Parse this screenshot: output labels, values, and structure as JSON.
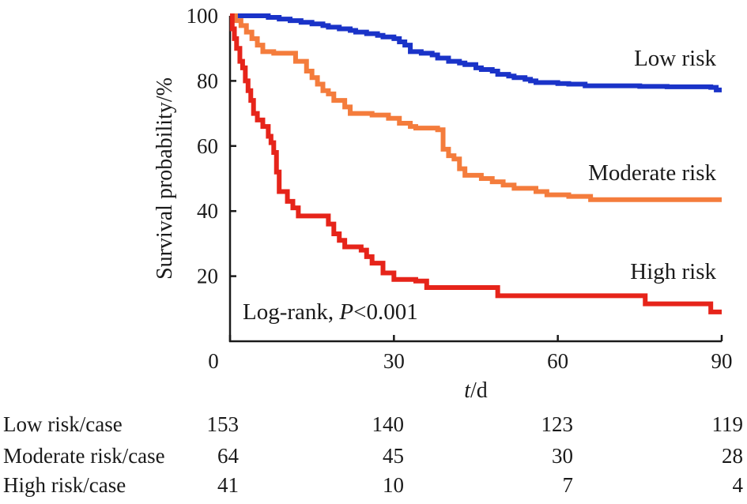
{
  "chart_data": {
    "type": "line",
    "subtype": "kaplan-meier step",
    "ylabel": "Survival probability/%",
    "xlabel_italic": "t",
    "xlabel_unit": "/d",
    "xlim": [
      0,
      90
    ],
    "ylim": [
      0,
      100
    ],
    "x_ticks": [
      0,
      30,
      60,
      90
    ],
    "y_ticks": [
      20,
      40,
      60,
      80,
      100
    ],
    "grid": false,
    "legend": "inline labels at right end of each curve",
    "annotation": {
      "prefix": "Log-rank, ",
      "italic": "P",
      "suffix": "<0.001"
    },
    "series": [
      {
        "name": "Low risk",
        "color": "#1a33c8",
        "points": [
          [
            0,
            100
          ],
          [
            6,
            100
          ],
          [
            7,
            99.5
          ],
          [
            9,
            99
          ],
          [
            11,
            98.5
          ],
          [
            13,
            98
          ],
          [
            15,
            97.5
          ],
          [
            17,
            97
          ],
          [
            18,
            96.5
          ],
          [
            20,
            96
          ],
          [
            22,
            95.5
          ],
          [
            23,
            95
          ],
          [
            25,
            94.5
          ],
          [
            27,
            94
          ],
          [
            28,
            93.5
          ],
          [
            30,
            93
          ],
          [
            31,
            92
          ],
          [
            32,
            91
          ],
          [
            33,
            89
          ],
          [
            35,
            88.5
          ],
          [
            37,
            88
          ],
          [
            38,
            87
          ],
          [
            40,
            86
          ],
          [
            42,
            85.5
          ],
          [
            43,
            85
          ],
          [
            45,
            84
          ],
          [
            46,
            83.5
          ],
          [
            48,
            83
          ],
          [
            49,
            82
          ],
          [
            51,
            81.5
          ],
          [
            52,
            81
          ],
          [
            54,
            80.5
          ],
          [
            55,
            80
          ],
          [
            56,
            79.5
          ],
          [
            58,
            79.5
          ],
          [
            60,
            79.2
          ],
          [
            62,
            79
          ],
          [
            65,
            78.5
          ],
          [
            70,
            78.5
          ],
          [
            75,
            78.3
          ],
          [
            80,
            78.2
          ],
          [
            88,
            78
          ],
          [
            89,
            77.2
          ],
          [
            90,
            77.2
          ]
        ]
      },
      {
        "name": "Moderate risk",
        "color": "#f47c3c",
        "points": [
          [
            0,
            100
          ],
          [
            1,
            98.5
          ],
          [
            2,
            97
          ],
          [
            3,
            95
          ],
          [
            4,
            93
          ],
          [
            5,
            91
          ],
          [
            6,
            89
          ],
          [
            8,
            88.5
          ],
          [
            11,
            88.5
          ],
          [
            12,
            86
          ],
          [
            14,
            83
          ],
          [
            15,
            81
          ],
          [
            16,
            79
          ],
          [
            17,
            77
          ],
          [
            18,
            76
          ],
          [
            19,
            74
          ],
          [
            21,
            72
          ],
          [
            22,
            70
          ],
          [
            26,
            69.5
          ],
          [
            29,
            68.5
          ],
          [
            31,
            67
          ],
          [
            33,
            66
          ],
          [
            34,
            65.5
          ],
          [
            38,
            65
          ],
          [
            39,
            59
          ],
          [
            40,
            57
          ],
          [
            41,
            56
          ],
          [
            42,
            53
          ],
          [
            43,
            51
          ],
          [
            46,
            50
          ],
          [
            48,
            49
          ],
          [
            50,
            48
          ],
          [
            52,
            47
          ],
          [
            56,
            46
          ],
          [
            58,
            45
          ],
          [
            62,
            44.5
          ],
          [
            66,
            43.5
          ],
          [
            70,
            43.5
          ],
          [
            80,
            43.5
          ],
          [
            90,
            43.5
          ]
        ]
      },
      {
        "name": "High risk",
        "color": "#e6241a",
        "points": [
          [
            0,
            100
          ],
          [
            0.4,
            96
          ],
          [
            0.8,
            93
          ],
          [
            1.2,
            90
          ],
          [
            1.8,
            86
          ],
          [
            2.3,
            84
          ],
          [
            2.8,
            80
          ],
          [
            3.3,
            77
          ],
          [
            3.8,
            74
          ],
          [
            4.3,
            70
          ],
          [
            5,
            68
          ],
          [
            6,
            66
          ],
          [
            7,
            63
          ],
          [
            7.5,
            61
          ],
          [
            8,
            58
          ],
          [
            8.5,
            52
          ],
          [
            9,
            46
          ],
          [
            10.5,
            43
          ],
          [
            11.5,
            41
          ],
          [
            12.5,
            38.5
          ],
          [
            14,
            38.5
          ],
          [
            17,
            38.5
          ],
          [
            18,
            36
          ],
          [
            19,
            33
          ],
          [
            20,
            31
          ],
          [
            21,
            29
          ],
          [
            24,
            28
          ],
          [
            25,
            26
          ],
          [
            26,
            24
          ],
          [
            28,
            21
          ],
          [
            30,
            19
          ],
          [
            34,
            18.5
          ],
          [
            36,
            16.5
          ],
          [
            40,
            16.5
          ],
          [
            47,
            16.5
          ],
          [
            49,
            14
          ],
          [
            55,
            14
          ],
          [
            70,
            14
          ],
          [
            76,
            11.5
          ],
          [
            80,
            11.5
          ],
          [
            86,
            11.5
          ],
          [
            88,
            9
          ],
          [
            90,
            9
          ]
        ]
      }
    ],
    "risk_table": {
      "rows": [
        {
          "label": "Low risk/case",
          "values": [
            "153",
            "140",
            "123",
            "119"
          ]
        },
        {
          "label": "Moderate risk/case",
          "values": [
            "64",
            "45",
            "30",
            "28"
          ]
        },
        {
          "label": "High risk/case",
          "values": [
            "41",
            "10",
            "7",
            "4"
          ]
        }
      ]
    }
  }
}
